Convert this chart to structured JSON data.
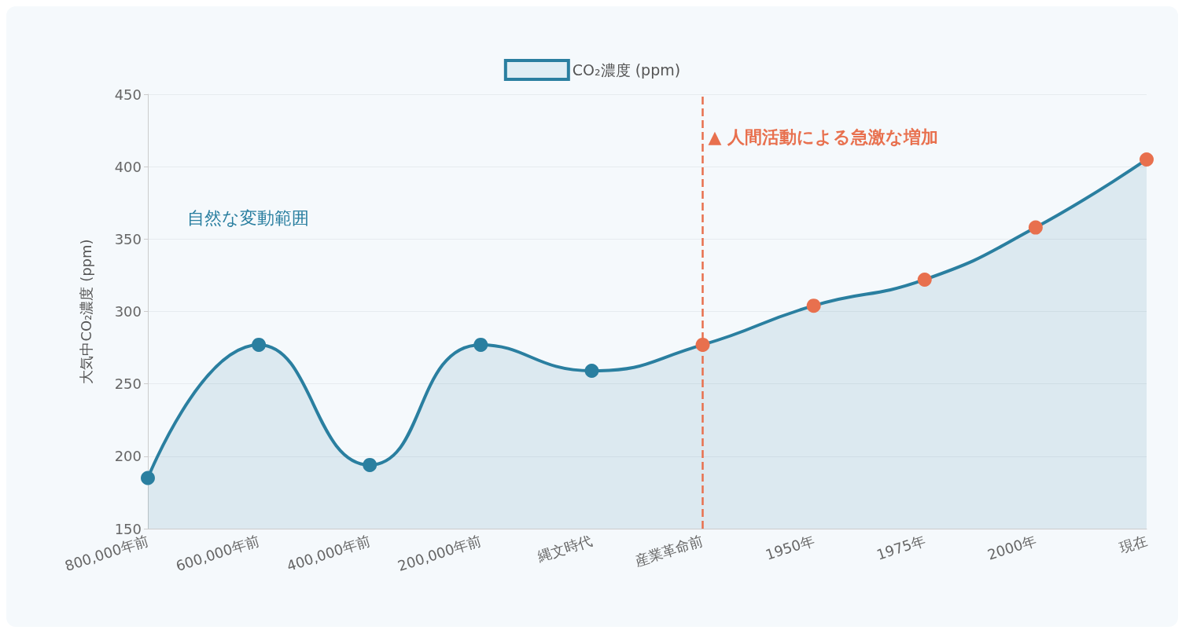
{
  "chart_data": {
    "type": "area",
    "ylabel": "大気中CO₂濃度 (ppm)",
    "categories": [
      "800,000年前",
      "600,000年前",
      "400,000年前",
      "200,000年前",
      "縄文時代",
      "産業革命前",
      "1950年",
      "1975年",
      "2000年",
      "現在"
    ],
    "series": [
      {
        "name": "CO₂濃度 (ppm)",
        "color": "#2a7fa0",
        "values": [
          185,
          277,
          194,
          277,
          259,
          277,
          304,
          322,
          358,
          405
        ],
        "colors": [
          "#2a7fa0",
          "#2a7fa0",
          "#2a7fa0",
          "#2a7fa0",
          "#2a7fa0",
          "#e8704e",
          "#e8704e",
          "#e8704e",
          "#e8704e",
          "#e8704e"
        ]
      }
    ],
    "ylim": [
      150,
      450
    ],
    "yticks": [
      150,
      200,
      250,
      300,
      350,
      400,
      450
    ],
    "grid": "y",
    "legend": "top",
    "marker": "circle",
    "line_style": "solid",
    "ref_lines": [
      {
        "axis": "x",
        "value": "産業革命前",
        "label": "▲ 人間活動による急激な増加",
        "color": "#e8704e",
        "line_style": "dashed"
      }
    ],
    "annotations": [
      "自然な変動範囲"
    ]
  }
}
